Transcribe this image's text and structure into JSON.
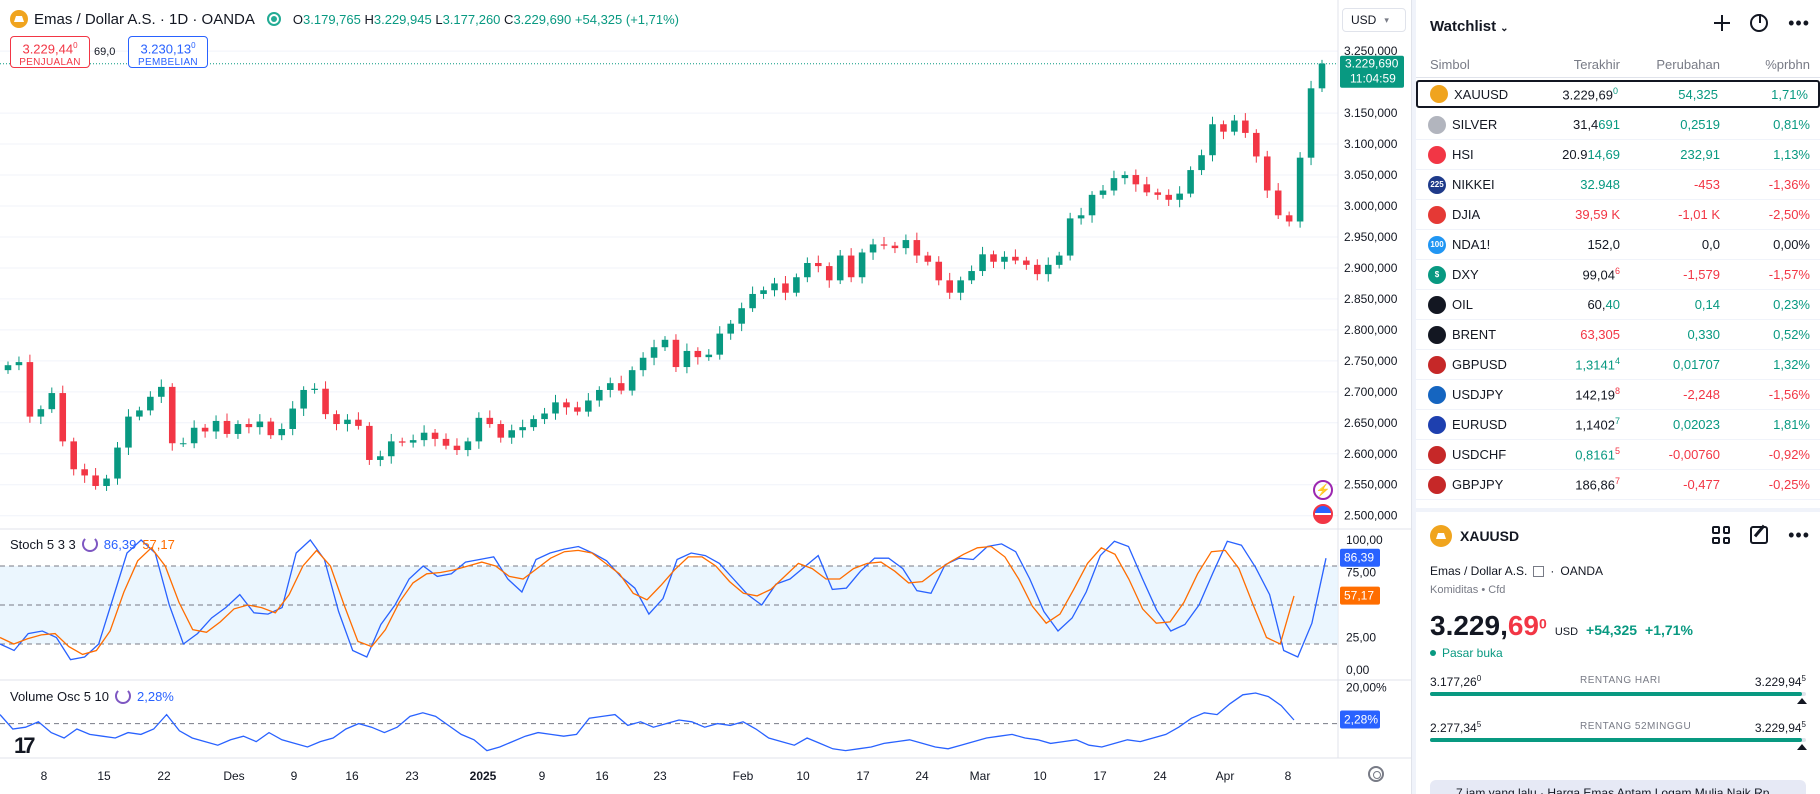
{
  "header": {
    "symbol_title": "Emas / Dollar A.S. · 1D · OANDA",
    "ohlc": {
      "o_label": "O",
      "o": "3.179,765",
      "h_label": "H",
      "h": "3.229,945",
      "l_label": "L",
      "l": "3.177,260",
      "c_label": "C",
      "c": "3.229,690",
      "chg": "+54,325 (+1,71%)"
    },
    "sell": {
      "price": "3.229,44",
      "price_sup": "0",
      "label": "PENJUALAN"
    },
    "buy": {
      "price": "3.230,13",
      "price_sup": "0",
      "label": "PEMBELIAN"
    },
    "spread": "69,0",
    "currency": "USD"
  },
  "price_axis": {
    "ticks": [
      "3.250,000",
      "3.150,000",
      "3.100,000",
      "3.050,000",
      "3.000,000",
      "2.950,000",
      "2.900,000",
      "2.850,000",
      "2.800,000",
      "2.750,000",
      "2.700,000",
      "2.650,000",
      "2.600,000",
      "2.550,000",
      "2.500,000"
    ],
    "last_price": "3.229,690",
    "countdown": "11:04:59"
  },
  "time_axis": {
    "labels": [
      "8",
      "15",
      "22",
      "Des",
      "9",
      "16",
      "23",
      "2025",
      "9",
      "16",
      "23",
      "Feb",
      "10",
      "17",
      "24",
      "Mar",
      "10",
      "17",
      "24",
      "Apr",
      "8"
    ]
  },
  "stoch": {
    "name": "Stoch 5 3 3",
    "k": "86,39",
    "d": "57,17",
    "axis": [
      "100,00",
      "75,00",
      "25,00",
      "0,00"
    ],
    "k_tag": "86,39",
    "d_tag": "57,17"
  },
  "volosc": {
    "name": "Volume Osc 5 10",
    "value": "2,28%",
    "axis": [
      "20,00%"
    ],
    "tag": "2,28%"
  },
  "chart_data": [
    {
      "type": "candlestick",
      "title": "Emas / Dollar A.S. · 1D · OANDA",
      "yticks": [
        2500,
        2550,
        2600,
        2650,
        2700,
        2750,
        2800,
        2850,
        2900,
        2950,
        3000,
        3050,
        3100,
        3150,
        3250
      ],
      "ylim": [
        2485,
        3268
      ],
      "x_labels": [
        "8",
        "15",
        "22",
        "Des",
        "9",
        "16",
        "23",
        "2025",
        "9",
        "16",
        "23",
        "Feb",
        "10",
        "17",
        "24",
        "Mar",
        "10",
        "17",
        "24",
        "Apr",
        "8"
      ],
      "last_close": 3229.69,
      "closes": [
        2743,
        2748,
        2660,
        2672,
        2698,
        2620,
        2575,
        2565,
        2548,
        2560,
        2610,
        2660,
        2670,
        2692,
        2708,
        2617,
        2617,
        2642,
        2636,
        2653,
        2632,
        2648,
        2643,
        2652,
        2630,
        2640,
        2673,
        2703,
        2705,
        2664,
        2648,
        2655,
        2645,
        2590,
        2596,
        2620,
        2618,
        2622,
        2634,
        2624,
        2613,
        2606,
        2620,
        2658,
        2648,
        2626,
        2638,
        2643,
        2656,
        2665,
        2683,
        2675,
        2668,
        2686,
        2703,
        2714,
        2702,
        2735,
        2755,
        2772,
        2784,
        2740,
        2766,
        2756,
        2760,
        2794,
        2810,
        2835,
        2858,
        2864,
        2875,
        2860,
        2885,
        2908,
        2903,
        2880,
        2920,
        2885,
        2925,
        2938,
        2936,
        2932,
        2945,
        2920,
        2910,
        2880,
        2860,
        2880,
        2895,
        2922,
        2910,
        2918,
        2912,
        2905,
        2890,
        2905,
        2920,
        2980,
        2985,
        3018,
        3025,
        3045,
        3050,
        3035,
        3022,
        3018,
        3010,
        3020,
        3058,
        3082,
        3132,
        3120,
        3138,
        3118,
        3080,
        3025,
        2985,
        2975,
        3078,
        3190,
        3230
      ]
    },
    {
      "type": "line",
      "title": "Stoch 5 3 3",
      "ylim": [
        0,
        100
      ],
      "yticks": [
        0,
        25,
        75,
        100
      ],
      "series": [
        {
          "name": "k",
          "values": [
            20,
            15,
            28,
            30,
            25,
            8,
            10,
            20,
            55,
            90,
            100,
            90,
            50,
            20,
            28,
            40,
            48,
            58,
            44,
            43,
            48,
            90,
            100,
            85,
            45,
            15,
            10,
            35,
            50,
            70,
            80,
            72,
            74,
            83,
            85,
            87,
            70,
            60,
            85,
            90,
            93,
            95,
            90,
            84,
            72,
            63,
            43,
            55,
            85,
            90,
            88,
            82,
            70,
            58,
            50,
            66,
            70,
            79,
            88,
            62,
            63,
            76,
            86,
            86,
            78,
            61,
            59,
            81,
            86,
            85,
            95,
            97,
            91,
            70,
            45,
            30,
            40,
            60,
            88,
            99,
            95,
            70,
            46,
            30,
            35,
            50,
            75,
            99,
            96,
            79,
            58,
            15,
            10,
            36,
            86
          ]
        },
        {
          "name": "d",
          "values": [
            25,
            20,
            24,
            27,
            28,
            18,
            12,
            15,
            30,
            60,
            84,
            94,
            80,
            52,
            31,
            29,
            37,
            47,
            50,
            48,
            44,
            58,
            80,
            92,
            80,
            50,
            22,
            18,
            31,
            52,
            67,
            74,
            75,
            77,
            80,
            83,
            80,
            72,
            70,
            78,
            86,
            91,
            92,
            90,
            82,
            74,
            59,
            54,
            65,
            77,
            87,
            87,
            80,
            68,
            59,
            57,
            62,
            72,
            82,
            78,
            70,
            70,
            78,
            82,
            83,
            76,
            67,
            68,
            76,
            83,
            89,
            94,
            95,
            87,
            70,
            49,
            36,
            43,
            62,
            82,
            94,
            89,
            70,
            47,
            36,
            37,
            52,
            74,
            91,
            92,
            78,
            51,
            25,
            20,
            57
          ]
        }
      ]
    },
    {
      "type": "line",
      "title": "Volume Osc 5 10",
      "ylim": [
        -18,
        22
      ],
      "yticks": [
        20
      ],
      "series": [
        {
          "name": "value",
          "values": [
            5,
            -3,
            -2,
            1,
            -5,
            -8,
            -3,
            -6,
            -7,
            -8,
            -5,
            -6,
            -3,
            5,
            -4,
            -8,
            -10,
            -12,
            -9,
            -7,
            -10,
            -5,
            -9,
            -11,
            -13,
            -10,
            -8,
            -3,
            0,
            -2,
            -5,
            -2,
            4,
            6,
            4,
            -1,
            -6,
            -9,
            -15,
            -13,
            -10,
            -7,
            -5,
            -6,
            -7,
            -6,
            3,
            4,
            5,
            -1,
            1,
            -2,
            0,
            2,
            1,
            -2,
            0,
            -1,
            1,
            -3,
            -8,
            -10,
            -12,
            -8,
            -11,
            -14,
            -15,
            -14,
            -13,
            -11,
            -10,
            -9,
            -11,
            -13,
            -14,
            -12,
            -10,
            -8,
            -7,
            -6,
            -8,
            -9,
            -11,
            -10,
            -9,
            -12,
            -13,
            -11,
            -9,
            -10,
            -8,
            -6,
            -2,
            3,
            6,
            5,
            11,
            16,
            17,
            15,
            10,
            2
          ]
        }
      ]
    }
  ],
  "watchlist": {
    "title": "Watchlist",
    "columns": {
      "symbol": "Simbol",
      "last": "Terakhir",
      "change": "Perubahan",
      "pct": "%prbhn"
    },
    "rows": [
      {
        "sym": "XAUUSD",
        "last_a": "3.229,69",
        "last_b": "0",
        "chg": "54,325",
        "pct": "1,71%",
        "dir": "up",
        "icon_color": "#f0a41e",
        "icon_text": ""
      },
      {
        "sym": "SILVER",
        "last_a": "31,4",
        "last_b": "691",
        "chg": "0,2519",
        "pct": "0,81%",
        "dir": "up",
        "icon_color": "#b2b5be",
        "icon_text": ""
      },
      {
        "sym": "HSI",
        "last_a": "20.9",
        "last_b": "14,69",
        "chg": "232,91",
        "pct": "1,13%",
        "dir": "up",
        "icon_color": "#f23645",
        "icon_text": ""
      },
      {
        "sym": "NIKKEI",
        "last_a": "32.948",
        "last_b": "",
        "chg": "-453",
        "pct": "-1,36%",
        "dir": "dn",
        "icon_color": "#1e3a8a",
        "icon_text": "225"
      },
      {
        "sym": "DJIA",
        "last_a": "39,59 K",
        "last_b": "",
        "chg": "-1,01 K",
        "pct": "-2,50%",
        "dir": "dn",
        "icon_color": "#e53935",
        "icon_text": ""
      },
      {
        "sym": "NDA1!",
        "last_a": "152,0",
        "last_b": "",
        "chg": "0,0",
        "pct": "0,00%",
        "dir": "nt",
        "icon_color": "#2196f3",
        "icon_text": "100"
      },
      {
        "sym": "DXY",
        "last_a": "99,04",
        "last_b": "6",
        "chg": "-1,579",
        "pct": "-1,57%",
        "dir": "dn",
        "icon_color": "#089981",
        "icon_text": "$"
      },
      {
        "sym": "OIL",
        "last_a": "60,",
        "last_b": "40",
        "chg": "0,14",
        "pct": "0,23%",
        "dir": "up",
        "icon_color": "#131722",
        "icon_text": ""
      },
      {
        "sym": "BRENT",
        "last_a": "63,305",
        "last_b": "",
        "chg": "0,330",
        "pct": "0,52%",
        "dir": "up",
        "icon_color": "#131722",
        "icon_text": ""
      },
      {
        "sym": "GBPUSD",
        "last_a": "1,3141",
        "last_b": "4",
        "chg": "0,01707",
        "pct": "1,32%",
        "dir": "up",
        "icon_color": "#c62828",
        "icon_text": ""
      },
      {
        "sym": "USDJPY",
        "last_a": "142,19",
        "last_b": "8",
        "chg": "-2,248",
        "pct": "-1,56%",
        "dir": "dn",
        "icon_color": "#1565c0",
        "icon_text": ""
      },
      {
        "sym": "EURUSD",
        "last_a": "1,1402",
        "last_b": "7",
        "chg": "0,02023",
        "pct": "1,81%",
        "dir": "up",
        "icon_color": "#1e40af",
        "icon_text": ""
      },
      {
        "sym": "USDCHF",
        "last_a": "0,8161",
        "last_b": "5",
        "chg": "-0,00760",
        "pct": "-0,92%",
        "dir": "dn",
        "icon_color": "#c62828",
        "icon_text": ""
      },
      {
        "sym": "GBPJPY",
        "last_a": "186,86",
        "last_b": "7",
        "chg": "-0,477",
        "pct": "-0,25%",
        "dir": "dn",
        "icon_color": "#c62828",
        "icon_text": ""
      }
    ]
  },
  "detail": {
    "symbol": "XAUUSD",
    "name": "Emas / Dollar A.S.",
    "exchange": "OANDA",
    "sub": "Komiditas • Cfd",
    "price_main": "3.229,",
    "price_tail": "69",
    "price_sup": "0",
    "currency": "USD",
    "chg": "+54,325",
    "pct": "+1,71%",
    "status": "Pasar buka",
    "day_range": {
      "lo": "3.177,26",
      "lo_sup": "0",
      "label": "RENTANG HARI",
      "hi": "3.229,94",
      "hi_sup": "5",
      "fill_pct": 99
    },
    "year_range": {
      "lo": "2.277,34",
      "lo_sup": "5",
      "label": "RENTANG 52MINGGU",
      "hi": "3.229,94",
      "hi_sup": "5",
      "fill_pct": 99
    },
    "news": "7 jam yang lalu · Harga Emas Antam Logam Mulia Naik Rp"
  }
}
